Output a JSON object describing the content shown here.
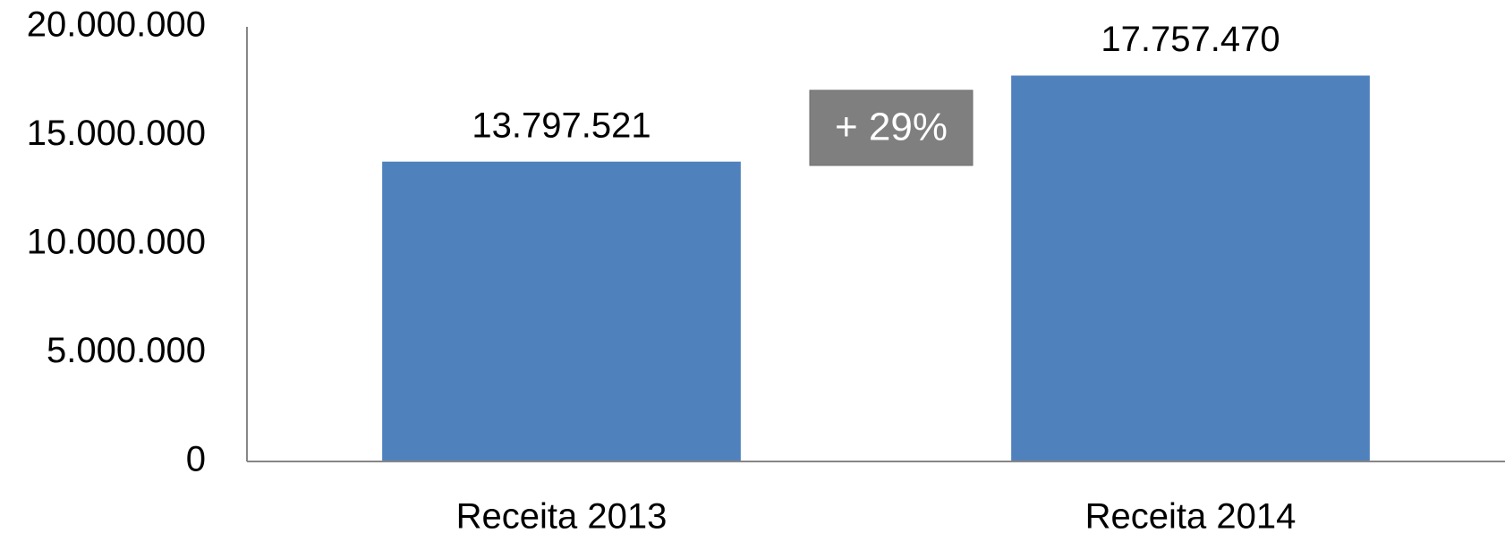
{
  "chart_data": {
    "type": "bar",
    "categories": [
      "Receita 2013",
      "Receita 2014"
    ],
    "values": [
      13797521,
      17757470
    ],
    "data_labels": [
      "13.797.521",
      "17.757.470"
    ],
    "ylim": [
      0,
      20000000
    ],
    "yticks": [
      0,
      5000000,
      10000000,
      15000000,
      20000000
    ],
    "ytick_labels": [
      "0",
      "5.000.000",
      "10.000.000",
      "15.000.000",
      "20.000.000"
    ],
    "title": "",
    "xlabel": "",
    "ylabel": "",
    "grid": false,
    "legend": "none",
    "bar_color": "#4F81BD",
    "axis_color": "#868686",
    "annotation": {
      "text": "+ 29%",
      "background": "#7F7F7F",
      "color": "#FFFFFF"
    }
  }
}
